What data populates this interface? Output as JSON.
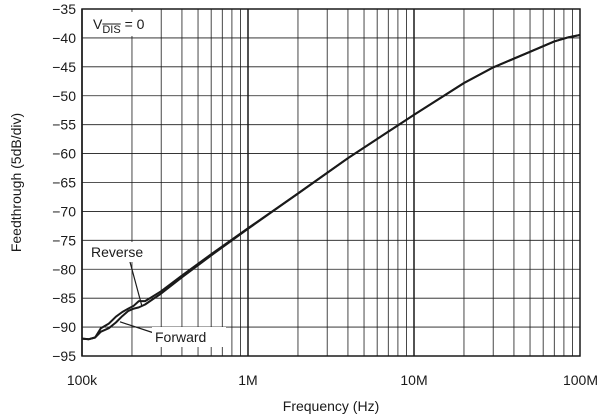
{
  "chart_data": {
    "type": "line",
    "xlabel": "Frequency (Hz)",
    "ylabel": "Feedthrough (5dB/div)",
    "x_scale": "log",
    "xlim": [
      100000,
      100000000
    ],
    "ylim": [
      -95,
      -35
    ],
    "grid": true,
    "x_tick_labels": [
      "100k",
      "1M",
      "10M",
      "100M"
    ],
    "y_ticks": [
      -35,
      -40,
      -45,
      -50,
      -55,
      -60,
      -65,
      -70,
      -75,
      -80,
      -85,
      -90,
      -95
    ],
    "y_tick_labels": [
      "−35",
      "−40",
      "−45",
      "−50",
      "−55",
      "−60",
      "−65",
      "−70",
      "−75",
      "−80",
      "−85",
      "−90",
      "−95"
    ],
    "condition_label": {
      "base": "V",
      "subscript": "DIS",
      "suffix": " = 0"
    },
    "series": [
      {
        "name": "Reverse",
        "x": [
          100000,
          110000,
          120000,
          130000,
          145000,
          160000,
          175000,
          190000,
          205000,
          220000,
          240000,
          260000,
          300000,
          400000,
          600000,
          1000000,
          2000000,
          4000000,
          10000000,
          20000000,
          30000000,
          50000000,
          70000000,
          85000000,
          100000000
        ],
        "y": [
          -92,
          -92.1,
          -91.8,
          -90.2,
          -89.4,
          -88.2,
          -87.4,
          -86.8,
          -86.3,
          -85.5,
          -85.5,
          -84.9,
          -83.8,
          -81.1,
          -77.4,
          -72.9,
          -66.9,
          -60.8,
          -53.3,
          -47.8,
          -45.1,
          -42.4,
          -40.6,
          -39.9,
          -39.5
        ]
      },
      {
        "name": "Forward",
        "x": [
          100000,
          110000,
          120000,
          130000,
          145000,
          160000,
          175000,
          190000,
          205000,
          220000,
          240000,
          260000,
          300000,
          400000,
          600000,
          1000000,
          2000000,
          4000000,
          10000000,
          20000000,
          30000000,
          50000000,
          70000000,
          85000000,
          100000000
        ],
        "y": [
          -92,
          -92.1,
          -91.8,
          -90.8,
          -90.2,
          -89.2,
          -88.1,
          -87.2,
          -86.8,
          -86.6,
          -86.1,
          -85.4,
          -84.2,
          -81.4,
          -77.6,
          -73,
          -66.9,
          -60.8,
          -53.3,
          -47.8,
          -45.1,
          -42.4,
          -40.6,
          -39.9,
          -39.5
        ]
      }
    ]
  }
}
